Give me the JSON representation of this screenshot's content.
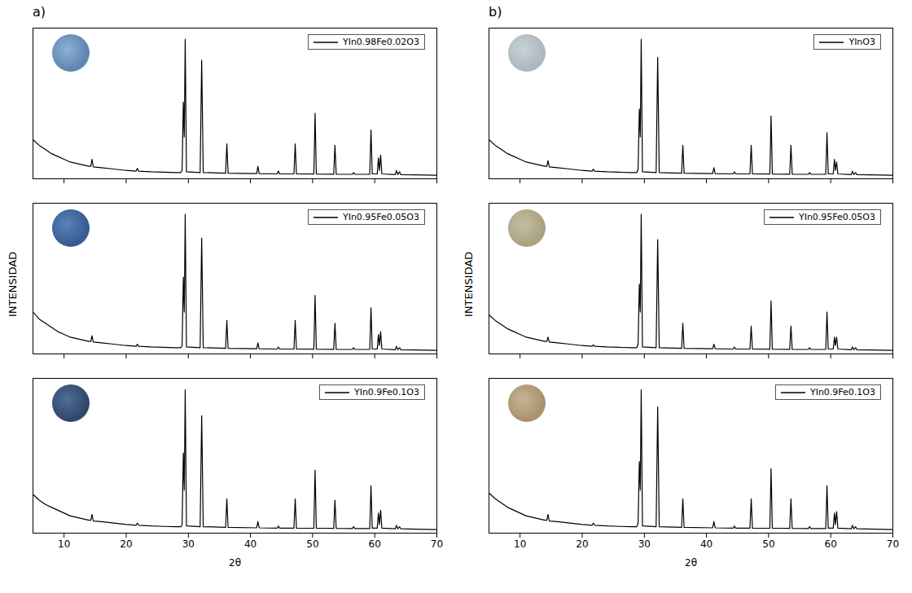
{
  "chart_data": [
    {
      "type": "line",
      "title": "a)",
      "x": [
        5,
        6,
        7,
        8,
        9,
        10,
        11,
        12,
        13,
        14,
        14.3,
        14.5,
        14.7,
        16,
        18,
        20,
        21.6,
        21.8,
        22,
        24,
        26,
        28,
        28.8,
        29,
        29.2,
        29.35,
        29.5,
        29.7,
        31.9,
        32.15,
        32.4,
        36,
        36.2,
        36.4,
        41,
        41.2,
        41.4,
        44.3,
        44.5,
        44.7,
        47,
        47.2,
        47.4,
        50.2,
        50.4,
        50.6,
        53.4,
        53.6,
        53.8,
        56.4,
        56.6,
        56.8,
        59.2,
        59.4,
        59.6,
        60.4,
        60.6,
        60.75,
        60.95,
        61.15,
        63.3,
        63.5,
        63.7,
        64,
        64.2,
        70
      ],
      "series": [
        {
          "name": "YIn0.98Fe0.02O3",
          "color": "#000000",
          "values": [
            0.28,
            0.24,
            0.21,
            0.18,
            0.16,
            0.14,
            0.12,
            0.11,
            0.1,
            0.09,
            0.09,
            0.14,
            0.085,
            0.08,
            0.07,
            0.06,
            0.055,
            0.075,
            0.055,
            0.05,
            0.047,
            0.045,
            0.045,
            0.06,
            0.55,
            0.3,
            1.0,
            0.05,
            0.045,
            0.85,
            0.045,
            0.04,
            0.25,
            0.04,
            0.037,
            0.09,
            0.037,
            0.035,
            0.055,
            0.035,
            0.035,
            0.25,
            0.035,
            0.034,
            0.47,
            0.034,
            0.033,
            0.24,
            0.033,
            0.032,
            0.045,
            0.032,
            0.032,
            0.35,
            0.035,
            0.035,
            0.15,
            0.06,
            0.17,
            0.035,
            0.03,
            0.06,
            0.03,
            0.05,
            0.03,
            0.025
          ]
        }
      ],
      "xlim": [
        5,
        70
      ],
      "xticks": [
        10,
        20,
        30,
        40,
        50,
        60,
        70
      ],
      "ylim": [
        0,
        1.08
      ],
      "tick_labels": false,
      "legend": "top-right"
    },
    {
      "type": "line",
      "ylabel": "INTENSIDAD",
      "x": [
        5,
        6,
        7,
        8,
        9,
        10,
        11,
        12,
        13,
        14,
        14.3,
        14.5,
        14.7,
        16,
        18,
        20,
        21.6,
        21.8,
        22,
        24,
        26,
        28,
        28.8,
        29,
        29.2,
        29.35,
        29.5,
        29.7,
        31.9,
        32.15,
        32.4,
        36,
        36.2,
        36.4,
        41,
        41.2,
        41.4,
        44.3,
        44.5,
        44.7,
        47,
        47.2,
        47.4,
        50.2,
        50.4,
        50.6,
        53.4,
        53.6,
        53.8,
        56.4,
        56.6,
        56.8,
        59.2,
        59.4,
        59.6,
        60.4,
        60.6,
        60.75,
        60.95,
        61.15,
        63.3,
        63.5,
        63.7,
        64,
        64.2,
        70
      ],
      "series": [
        {
          "name": "YIn0.95Fe0.05O3",
          "color": "#000000",
          "values": [
            0.3,
            0.25,
            0.22,
            0.19,
            0.16,
            0.14,
            0.12,
            0.11,
            0.1,
            0.09,
            0.09,
            0.13,
            0.085,
            0.08,
            0.07,
            0.06,
            0.055,
            0.07,
            0.055,
            0.05,
            0.047,
            0.045,
            0.045,
            0.06,
            0.55,
            0.3,
            1.0,
            0.05,
            0.045,
            0.83,
            0.045,
            0.04,
            0.24,
            0.04,
            0.037,
            0.08,
            0.037,
            0.035,
            0.05,
            0.035,
            0.035,
            0.24,
            0.035,
            0.034,
            0.42,
            0.034,
            0.033,
            0.22,
            0.033,
            0.032,
            0.045,
            0.032,
            0.032,
            0.33,
            0.035,
            0.035,
            0.14,
            0.06,
            0.16,
            0.035,
            0.03,
            0.055,
            0.03,
            0.045,
            0.03,
            0.025
          ]
        }
      ],
      "xlim": [
        5,
        70
      ],
      "xticks": [
        10,
        20,
        30,
        40,
        50,
        60,
        70
      ],
      "ylim": [
        0,
        1.08
      ],
      "tick_labels": false,
      "legend": "top-right"
    },
    {
      "type": "line",
      "xlabel": "2θ",
      "x": [
        5,
        6,
        7,
        8,
        9,
        10,
        11,
        12,
        13,
        14,
        14.3,
        14.5,
        14.7,
        16,
        18,
        20,
        21.6,
        21.8,
        22,
        24,
        26,
        28,
        28.8,
        29,
        29.2,
        29.35,
        29.5,
        29.7,
        31.9,
        32.15,
        32.4,
        36,
        36.2,
        36.4,
        41,
        41.2,
        41.4,
        44.3,
        44.5,
        44.7,
        47,
        47.2,
        47.4,
        50.2,
        50.4,
        50.6,
        53.4,
        53.6,
        53.8,
        56.4,
        56.6,
        56.8,
        59.2,
        59.4,
        59.6,
        60.4,
        60.6,
        60.75,
        60.95,
        61.15,
        63.3,
        63.5,
        63.7,
        64,
        64.2,
        70
      ],
      "series": [
        {
          "name": "YIn0.9Fe0.1O3",
          "color": "#000000",
          "values": [
            0.27,
            0.23,
            0.2,
            0.18,
            0.16,
            0.14,
            0.12,
            0.11,
            0.1,
            0.09,
            0.09,
            0.13,
            0.085,
            0.08,
            0.07,
            0.06,
            0.055,
            0.07,
            0.055,
            0.05,
            0.047,
            0.045,
            0.045,
            0.06,
            0.56,
            0.3,
            1.0,
            0.05,
            0.045,
            0.82,
            0.045,
            0.04,
            0.24,
            0.04,
            0.037,
            0.08,
            0.037,
            0.035,
            0.05,
            0.035,
            0.035,
            0.24,
            0.035,
            0.034,
            0.44,
            0.034,
            0.033,
            0.23,
            0.033,
            0.032,
            0.045,
            0.032,
            0.032,
            0.33,
            0.035,
            0.035,
            0.14,
            0.06,
            0.16,
            0.035,
            0.03,
            0.055,
            0.03,
            0.045,
            0.03,
            0.025
          ]
        }
      ],
      "xlim": [
        5,
        70
      ],
      "xticks": [
        10,
        20,
        30,
        40,
        50,
        60,
        70
      ],
      "ylim": [
        0,
        1.08
      ],
      "tick_labels": "x",
      "legend": "top-right"
    },
    {
      "type": "line",
      "title": "b)",
      "x": [
        5,
        6,
        7,
        8,
        9,
        10,
        11,
        12,
        13,
        14,
        14.3,
        14.5,
        14.7,
        16,
        18,
        20,
        21.6,
        21.8,
        22,
        24,
        26,
        28,
        28.8,
        29,
        29.2,
        29.35,
        29.5,
        29.7,
        31.9,
        32.15,
        32.4,
        36,
        36.2,
        36.4,
        41,
        41.2,
        41.4,
        44.3,
        44.5,
        44.7,
        47,
        47.2,
        47.4,
        50.2,
        50.4,
        50.6,
        53.4,
        53.6,
        53.8,
        56.4,
        56.6,
        56.8,
        59.2,
        59.4,
        59.6,
        60.4,
        60.6,
        60.75,
        60.95,
        61.15,
        63.3,
        63.5,
        63.7,
        64,
        64.2,
        70
      ],
      "series": [
        {
          "name": "YInO3",
          "color": "#000000",
          "values": [
            0.28,
            0.24,
            0.21,
            0.18,
            0.16,
            0.14,
            0.12,
            0.11,
            0.1,
            0.09,
            0.09,
            0.13,
            0.085,
            0.08,
            0.07,
            0.06,
            0.055,
            0.07,
            0.055,
            0.05,
            0.047,
            0.045,
            0.045,
            0.07,
            0.5,
            0.3,
            1.0,
            0.05,
            0.045,
            0.87,
            0.045,
            0.04,
            0.24,
            0.04,
            0.037,
            0.08,
            0.037,
            0.035,
            0.05,
            0.035,
            0.035,
            0.24,
            0.035,
            0.034,
            0.45,
            0.034,
            0.033,
            0.24,
            0.033,
            0.032,
            0.045,
            0.032,
            0.032,
            0.33,
            0.035,
            0.035,
            0.14,
            0.06,
            0.12,
            0.035,
            0.03,
            0.055,
            0.03,
            0.045,
            0.03,
            0.025
          ]
        }
      ],
      "xlim": [
        5,
        70
      ],
      "xticks": [
        10,
        20,
        30,
        40,
        50,
        60,
        70
      ],
      "ylim": [
        0,
        1.08
      ],
      "tick_labels": false,
      "legend": "top-right"
    },
    {
      "type": "line",
      "ylabel": "INTENSIDAD",
      "x": [
        5,
        6,
        7,
        8,
        9,
        10,
        11,
        12,
        13,
        14,
        14.3,
        14.5,
        14.7,
        16,
        18,
        20,
        21.6,
        21.8,
        22,
        24,
        26,
        28,
        28.8,
        29,
        29.2,
        29.35,
        29.5,
        29.7,
        31.9,
        32.15,
        32.4,
        36,
        36.2,
        36.4,
        41,
        41.2,
        41.4,
        44.3,
        44.5,
        44.7,
        47,
        47.2,
        47.4,
        50.2,
        50.4,
        50.6,
        53.4,
        53.6,
        53.8,
        56.4,
        56.6,
        56.8,
        59.2,
        59.4,
        59.6,
        60.4,
        60.6,
        60.75,
        60.95,
        61.15,
        63.3,
        63.5,
        63.7,
        64,
        64.2,
        70
      ],
      "series": [
        {
          "name": "YIn0.95Fe0.05O3",
          "color": "#000000",
          "values": [
            0.28,
            0.24,
            0.21,
            0.18,
            0.16,
            0.14,
            0.12,
            0.11,
            0.1,
            0.09,
            0.09,
            0.12,
            0.085,
            0.08,
            0.07,
            0.06,
            0.055,
            0.065,
            0.055,
            0.05,
            0.047,
            0.045,
            0.045,
            0.07,
            0.5,
            0.3,
            1.0,
            0.05,
            0.045,
            0.82,
            0.045,
            0.04,
            0.22,
            0.04,
            0.037,
            0.07,
            0.037,
            0.035,
            0.05,
            0.035,
            0.035,
            0.2,
            0.035,
            0.034,
            0.38,
            0.034,
            0.033,
            0.2,
            0.033,
            0.032,
            0.045,
            0.032,
            0.032,
            0.3,
            0.035,
            0.035,
            0.12,
            0.06,
            0.12,
            0.035,
            0.03,
            0.05,
            0.03,
            0.045,
            0.03,
            0.025
          ]
        }
      ],
      "xlim": [
        5,
        70
      ],
      "xticks": [
        10,
        20,
        30,
        40,
        50,
        60,
        70
      ],
      "ylim": [
        0,
        1.08
      ],
      "tick_labels": false,
      "legend": "top-right"
    },
    {
      "type": "line",
      "xlabel": "2θ",
      "x": [
        5,
        6,
        7,
        8,
        9,
        10,
        11,
        12,
        13,
        14,
        14.3,
        14.5,
        14.7,
        16,
        18,
        20,
        21.6,
        21.8,
        22,
        24,
        26,
        28,
        28.8,
        29,
        29.2,
        29.35,
        29.5,
        29.7,
        31.9,
        32.15,
        32.4,
        36,
        36.2,
        36.4,
        41,
        41.2,
        41.4,
        44.3,
        44.5,
        44.7,
        47,
        47.2,
        47.4,
        50.2,
        50.4,
        50.6,
        53.4,
        53.6,
        53.8,
        56.4,
        56.6,
        56.8,
        59.2,
        59.4,
        59.6,
        60.4,
        60.6,
        60.75,
        60.95,
        61.15,
        63.3,
        63.5,
        63.7,
        64,
        64.2,
        70
      ],
      "series": [
        {
          "name": "YIn0.9Fe0.1O3",
          "color": "#000000",
          "values": [
            0.28,
            0.24,
            0.21,
            0.18,
            0.16,
            0.14,
            0.12,
            0.11,
            0.1,
            0.09,
            0.09,
            0.13,
            0.085,
            0.08,
            0.07,
            0.06,
            0.055,
            0.07,
            0.055,
            0.05,
            0.047,
            0.045,
            0.045,
            0.07,
            0.5,
            0.3,
            1.0,
            0.05,
            0.045,
            0.88,
            0.045,
            0.04,
            0.24,
            0.04,
            0.037,
            0.08,
            0.037,
            0.035,
            0.05,
            0.035,
            0.035,
            0.24,
            0.035,
            0.034,
            0.45,
            0.034,
            0.033,
            0.24,
            0.033,
            0.032,
            0.045,
            0.032,
            0.032,
            0.33,
            0.035,
            0.035,
            0.14,
            0.06,
            0.15,
            0.035,
            0.03,
            0.055,
            0.03,
            0.045,
            0.03,
            0.025
          ]
        }
      ],
      "xlim": [
        5,
        70
      ],
      "xticks": [
        10,
        20,
        30,
        40,
        50,
        60,
        70
      ],
      "ylim": [
        0,
        1.08
      ],
      "tick_labels": "x",
      "legend": "top-right"
    }
  ]
}
